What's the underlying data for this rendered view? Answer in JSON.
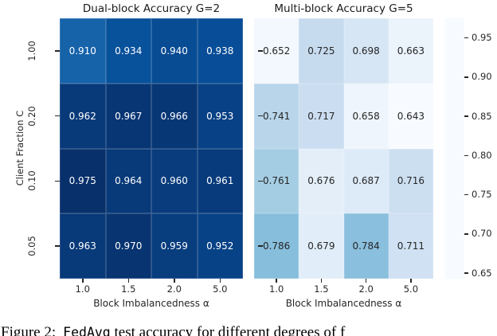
{
  "figure_caption": {
    "prefix": "Figure 2:",
    "method": "FedAvg",
    "suffix": "test accuracy for different degrees of f"
  },
  "colorbar": {
    "tick_labels": [
      "0.95",
      "0.90",
      "0.85",
      "0.80",
      "0.75",
      "0.70",
      "0.65"
    ],
    "tick_values": [
      0.95,
      0.9,
      0.85,
      0.8,
      0.75,
      0.7,
      0.65
    ],
    "vmin": 0.643,
    "vmax": 0.975,
    "colormap": "Blues"
  },
  "chart_data": [
    {
      "type": "heatmap",
      "title": "Dual-block Accuracy G=2",
      "xlabel": "Block Imbalancedness α",
      "ylabel": "Client Fraction C",
      "x_categories": [
        "1.0",
        "1.5",
        "2.0",
        "5.0"
      ],
      "y_categories": [
        "1.00",
        "0.20",
        "0.10",
        "0.05"
      ],
      "values": [
        [
          0.91,
          0.934,
          0.94,
          0.938
        ],
        [
          0.962,
          0.967,
          0.966,
          0.953
        ],
        [
          0.975,
          0.964,
          0.96,
          0.961
        ],
        [
          0.963,
          0.97,
          0.959,
          0.952
        ]
      ],
      "vmin": 0.643,
      "vmax": 0.975,
      "colormap": "Blues",
      "annot_decimals": 3,
      "annot_color_dark": "#262626",
      "annot_color_light": "#ffffff",
      "legend": "shared colorbar right"
    },
    {
      "type": "heatmap",
      "title": "Multi-block Accuracy G=5",
      "xlabel": "Block Imbalancedness α",
      "ylabel": "",
      "x_categories": [
        "1.0",
        "1.5",
        "2.0",
        "5.0"
      ],
      "y_categories": [
        "1.00",
        "0.20",
        "0.10",
        "0.05"
      ],
      "values": [
        [
          0.652,
          0.725,
          0.698,
          0.663
        ],
        [
          0.741,
          0.717,
          0.658,
          0.643
        ],
        [
          0.761,
          0.676,
          0.687,
          0.716
        ],
        [
          0.786,
          0.679,
          0.784,
          0.711
        ]
      ],
      "vmin": 0.643,
      "vmax": 0.975,
      "colormap": "Blues",
      "annot_decimals": 3,
      "annot_color_dark": "#262626",
      "annot_color_light": "#ffffff",
      "legend": "shared colorbar right"
    }
  ]
}
